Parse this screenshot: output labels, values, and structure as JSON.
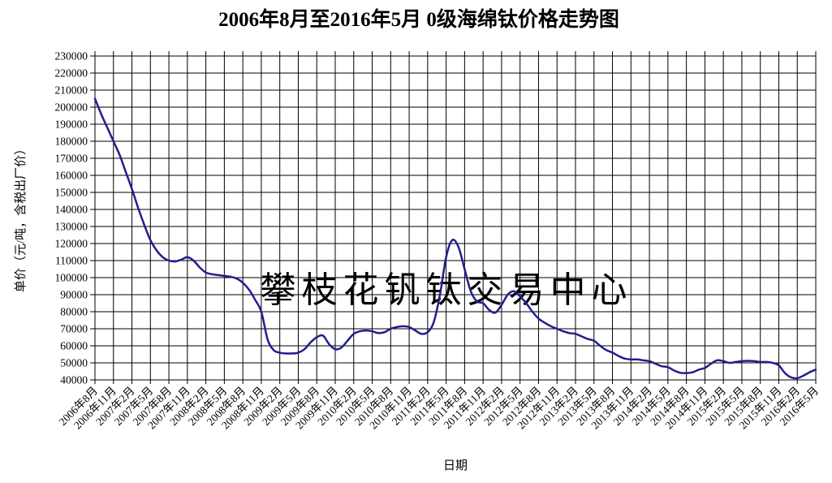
{
  "title": "2006年8月至2016年5月 0级海绵钛价格走势图",
  "watermark": "攀枝花钒钛交易中心",
  "colors": {
    "line": "#211E8F",
    "grid": "#000000",
    "watermark": "#C8C8EC",
    "background": "#FFFFFF",
    "text": "#000000"
  },
  "chart_data": {
    "type": "line",
    "title": "2006年8月至2016年5月 0级海绵钛价格走势图",
    "xlabel": "日期",
    "ylabel": "单价（元/吨，含税出厂价）",
    "grid": true,
    "legend": "none",
    "ylim": [
      40000,
      230000
    ],
    "ytick_step": 10000,
    "y_tick_labels": [
      "40000",
      "50000",
      "60000",
      "70000",
      "80000",
      "90000",
      "100000",
      "110000",
      "120000",
      "130000",
      "140000",
      "150000",
      "160000",
      "170000",
      "180000",
      "190000",
      "200000",
      "210000",
      "220000",
      "230000"
    ],
    "x_tick_labels": [
      "2006年8月",
      "2006年11月",
      "2007年2月",
      "2007年5月",
      "2007年8月",
      "2007年11月",
      "2008年2月",
      "2008年5月",
      "2008年8月",
      "2008年11月",
      "2009年2月",
      "2009年5月",
      "2009年8月",
      "2009年11月",
      "2010年2月",
      "2010年5月",
      "2010年8月",
      "2010年11月",
      "2011年2月",
      "2011年5月",
      "2011年8月",
      "2011年11月",
      "2012年2月",
      "2012年5月",
      "2012年8月",
      "2012年11月",
      "2013年2月",
      "2013年5月",
      "2013年8月",
      "2013年11月",
      "2014年2月",
      "2014年5月",
      "2014年8月",
      "2014年11月",
      "2015年2月",
      "2015年5月",
      "2015年8月",
      "2015年11月",
      "2016年2月",
      "2016年5月"
    ],
    "x_start": "2006年8月",
    "x_end": "2016年5月",
    "x_interval": "monthly",
    "series": [
      {
        "name": "0级海绵钛价格",
        "values": [
          205000,
          196000,
          188000,
          180000,
          172000,
          162000,
          152000,
          141000,
          131000,
          122000,
          116000,
          112000,
          110000,
          109500,
          110500,
          112000,
          110000,
          106000,
          103000,
          102000,
          101500,
          101000,
          100500,
          99500,
          97000,
          93000,
          87000,
          80000,
          64000,
          57500,
          56000,
          55500,
          55500,
          56000,
          58000,
          62000,
          65000,
          66000,
          61000,
          58000,
          59000,
          63000,
          67000,
          68500,
          69000,
          68500,
          67500,
          68000,
          70000,
          71000,
          71500,
          71000,
          69000,
          67000,
          68000,
          74000,
          90000,
          112000,
          122000,
          118000,
          105000,
          92000,
          86000,
          85000,
          81000,
          79500,
          84000,
          90000,
          92000,
          89000,
          85000,
          80000,
          76000,
          73500,
          71500,
          70000,
          68500,
          67500,
          67000,
          65500,
          64000,
          63000,
          60000,
          57500,
          56000,
          54000,
          52500,
          52000,
          52000,
          51500,
          51000,
          49500,
          48000,
          47500,
          45500,
          44200,
          44000,
          44500,
          46000,
          47000,
          49500,
          51500,
          51000,
          50000,
          50500,
          51000,
          51200,
          51000,
          50500,
          50500,
          50000,
          48500,
          44000,
          41500,
          41000,
          42500,
          44500,
          46000
        ]
      }
    ]
  }
}
